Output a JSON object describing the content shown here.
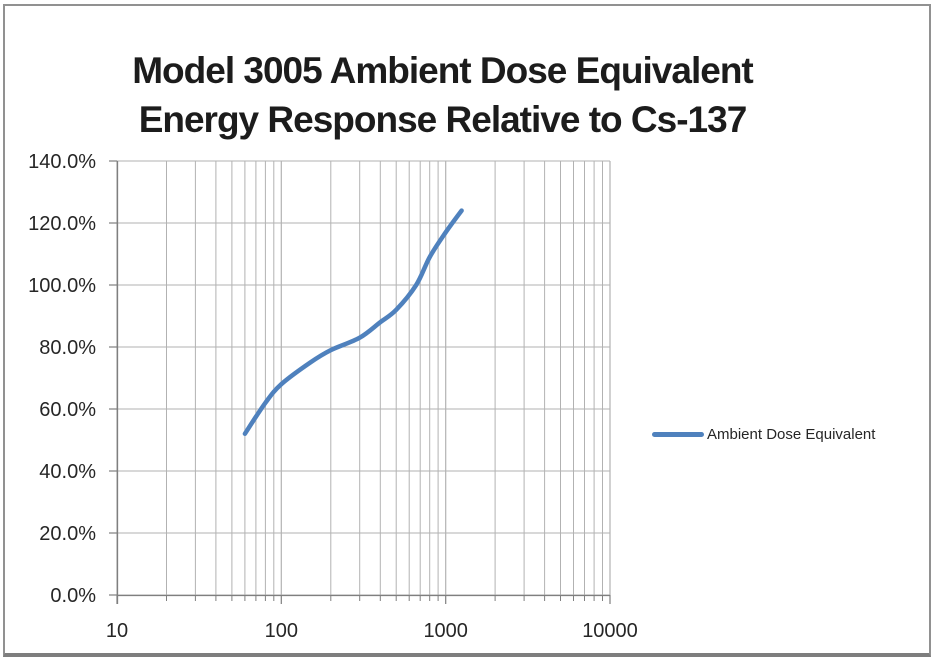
{
  "title": {
    "line1": "Model 3005 Ambient Dose Equivalent",
    "line2": "Energy Response Relative to Cs-137"
  },
  "legend": {
    "label": "Ambient Dose Equivalent"
  },
  "colors": {
    "series": "#4F81BD",
    "gridline": "#b2b2b2",
    "axis": "#7f7f7f",
    "title_text": "#1c1c1c",
    "label_text": "#262626",
    "background": "#ffffff",
    "frame_border": "#919191"
  },
  "chart_data": {
    "type": "line",
    "title": "Model 3005 Ambient Dose Equivalent Energy Response Relative to Cs-137",
    "legend_position": "right",
    "grid": "on",
    "x_axis": {
      "scale": "log",
      "min": 10,
      "max": 10000,
      "tick_values": [
        10,
        100,
        1000,
        10000
      ],
      "tick_labels": [
        "10",
        "100",
        "1000",
        "10000"
      ],
      "minor_gridlines": true
    },
    "y_axis": {
      "min": 0,
      "max": 140,
      "unit": "percent",
      "tick_values": [
        0,
        20,
        40,
        60,
        80,
        100,
        120,
        140
      ],
      "tick_labels": [
        "0.0%",
        "20.0%",
        "40.0%",
        "60.0%",
        "80.0%",
        "100.0%",
        "120.0%",
        "140.0%"
      ]
    },
    "series": [
      {
        "name": "Ambient Dose Equivalent",
        "color": "#4F81BD",
        "smooth": true,
        "markers": false,
        "points": [
          {
            "x": 60,
            "y": 52
          },
          {
            "x": 80,
            "y": 62
          },
          {
            "x": 100,
            "y": 68
          },
          {
            "x": 150,
            "y": 75
          },
          {
            "x": 200,
            "y": 79
          },
          {
            "x": 300,
            "y": 83
          },
          {
            "x": 400,
            "y": 88
          },
          {
            "x": 500,
            "y": 92
          },
          {
            "x": 662,
            "y": 100
          },
          {
            "x": 800,
            "y": 109
          },
          {
            "x": 1000,
            "y": 117
          },
          {
            "x": 1250,
            "y": 124
          }
        ]
      }
    ]
  }
}
